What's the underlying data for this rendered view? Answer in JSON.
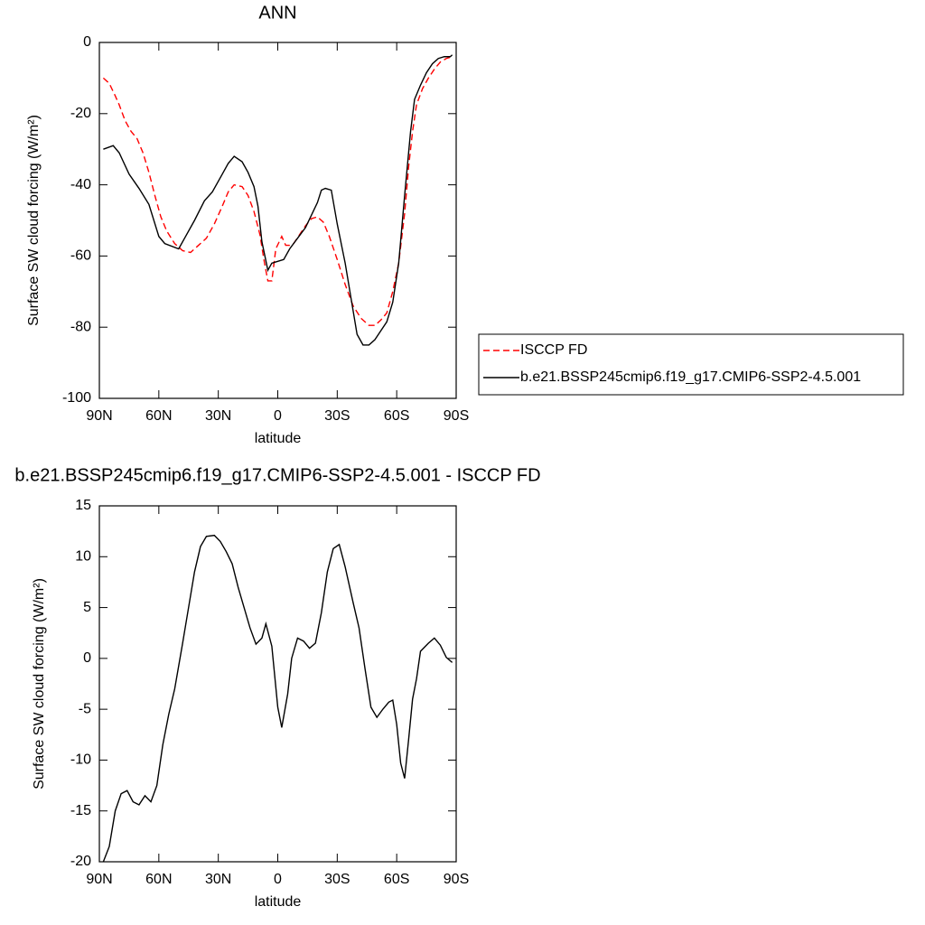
{
  "chart_data": [
    {
      "type": "line",
      "title": "ANN",
      "x_label": "latitude",
      "y_label": "Surface SW cloud forcing (W/m²)",
      "xlim": [
        90,
        -90
      ],
      "ylim": [
        -100,
        0
      ],
      "xticks": [
        {
          "value": 90,
          "label": "90N"
        },
        {
          "value": 60,
          "label": "60N"
        },
        {
          "value": 30,
          "label": "30N"
        },
        0,
        {
          "value": -30,
          "label": "30S"
        },
        {
          "value": -60,
          "label": "60S"
        },
        {
          "value": -90,
          "label": "90S"
        }
      ],
      "yticks": [
        -100,
        -80,
        -60,
        -40,
        -20,
        0
      ],
      "legend": "right",
      "series": [
        {
          "name": "ISCCP FD",
          "color": "#ff0000",
          "linestyle": "dashed",
          "x": [
            88,
            85,
            82,
            80,
            77,
            74,
            71,
            68,
            65,
            62,
            59,
            56,
            52,
            48,
            44,
            40,
            36,
            32,
            28,
            25,
            22,
            18,
            15,
            12,
            9,
            7,
            5,
            3,
            1,
            -2,
            -4,
            -6,
            -8,
            -11,
            -14,
            -17,
            -20,
            -23,
            -26,
            -30,
            -34,
            -38,
            -42,
            -46,
            -49,
            -52,
            -55,
            -58,
            -61,
            -64,
            -66,
            -68,
            -70,
            -73,
            -76,
            -79,
            -82,
            -85,
            -88
          ],
          "values": [
            -10,
            -11.5,
            -15,
            -17.5,
            -22,
            -25,
            -27,
            -31,
            -36.5,
            -43,
            -49,
            -53,
            -56.5,
            -58.5,
            -59,
            -57,
            -55,
            -51,
            -46,
            -42,
            -40,
            -40.5,
            -43,
            -47.5,
            -54,
            -61,
            -67,
            -67,
            -58,
            -54.5,
            -57,
            -57,
            -56.5,
            -54,
            -51.5,
            -49.5,
            -49,
            -50.5,
            -54.5,
            -61,
            -68,
            -74,
            -77.5,
            -79.5,
            -79.5,
            -78,
            -76,
            -70,
            -62,
            -48,
            -35,
            -25,
            -17.5,
            -13,
            -10,
            -7.5,
            -5.5,
            -4.5,
            -4
          ]
        },
        {
          "name": "b.e21.BSSP245cmip6.f19_g17.CMIP6-SSP2-4.5.001",
          "color": "#000000",
          "linestyle": "solid",
          "x": [
            88,
            83,
            80,
            75,
            70,
            65,
            60,
            57,
            50,
            47,
            42,
            37,
            33,
            28,
            25,
            22,
            18,
            15,
            12,
            10,
            8,
            5,
            3,
            0,
            -3,
            -6,
            -10,
            -14,
            -17,
            -20,
            -22,
            -24,
            -27,
            -30,
            -34,
            -37,
            -40,
            -43,
            -46,
            -49,
            -52,
            -55,
            -58,
            -61,
            -64,
            -67,
            -69,
            -72,
            -75,
            -78,
            -81,
            -84,
            -87,
            -88
          ],
          "values": [
            -30,
            -29,
            -31,
            -37,
            -41,
            -45.5,
            -54.5,
            -56.5,
            -58,
            -55,
            -50,
            -44.5,
            -42,
            -37,
            -34,
            -32,
            -33.5,
            -36.5,
            -40.5,
            -46,
            -56,
            -64,
            -62,
            -61.5,
            -61,
            -58,
            -55,
            -52,
            -48.5,
            -45,
            -41.5,
            -41,
            -41.5,
            -51,
            -62,
            -72,
            -82,
            -85,
            -85,
            -83.5,
            -81,
            -78.5,
            -73,
            -62,
            -43,
            -25,
            -16,
            -12,
            -8.5,
            -6,
            -4.5,
            -4,
            -4,
            -3.5
          ]
        }
      ]
    },
    {
      "type": "line",
      "title": "b.e21.BSSP245cmip6.f19_g17.CMIP6-SSP2-4.5.001 - ISCCP FD",
      "x_label": "latitude",
      "y_label": "Surface SW cloud forcing (W/m²)",
      "xlim": [
        90,
        -90
      ],
      "ylim": [
        -20,
        15
      ],
      "xticks": [
        {
          "value": 90,
          "label": "90N"
        },
        {
          "value": 60,
          "label": "60N"
        },
        {
          "value": 30,
          "label": "30N"
        },
        0,
        {
          "value": -30,
          "label": "30S"
        },
        {
          "value": -60,
          "label": "60S"
        },
        {
          "value": -90,
          "label": "90S"
        }
      ],
      "yticks": [
        -20,
        -15,
        -10,
        -5,
        0,
        5,
        10,
        15
      ],
      "series": [
        {
          "color": "#000000",
          "linestyle": "solid",
          "x": [
            88,
            85,
            82,
            79,
            76,
            73,
            70,
            67,
            64,
            61,
            58,
            55,
            52,
            48,
            45,
            42,
            39,
            36,
            32,
            29,
            26,
            23,
            20,
            17,
            14,
            11,
            8,
            6,
            3,
            0,
            -2,
            -5,
            -7,
            -10,
            -13,
            -16,
            -19,
            -22,
            -25,
            -28,
            -31,
            -34,
            -38,
            -41,
            -44,
            -47,
            -50,
            -53,
            -56,
            -58,
            -60,
            -62,
            -64,
            -66,
            -68,
            -70,
            -72,
            -76,
            -79,
            -82,
            -85,
            -88
          ],
          "values": [
            -20,
            -18.5,
            -15,
            -13.3,
            -13,
            -14.1,
            -14.4,
            -13.5,
            -14.1,
            -12.5,
            -8.5,
            -5.5,
            -3,
            1.5,
            5,
            8.5,
            11,
            12,
            12.1,
            11.5,
            10.5,
            9.3,
            7,
            5,
            3,
            1.4,
            2,
            3.4,
            1.2,
            -4.8,
            -6.8,
            -3.5,
            0,
            2,
            1.7,
            1,
            1.5,
            4.5,
            8.5,
            10.8,
            11.2,
            9,
            5.5,
            3,
            -1,
            -4.8,
            -5.8,
            -5,
            -4.3,
            -4.1,
            -6.5,
            -10.3,
            -11.8,
            -8,
            -4,
            -2,
            0.7,
            1.5,
            2,
            1.3,
            0.1,
            -0.4
          ]
        }
      ]
    }
  ]
}
